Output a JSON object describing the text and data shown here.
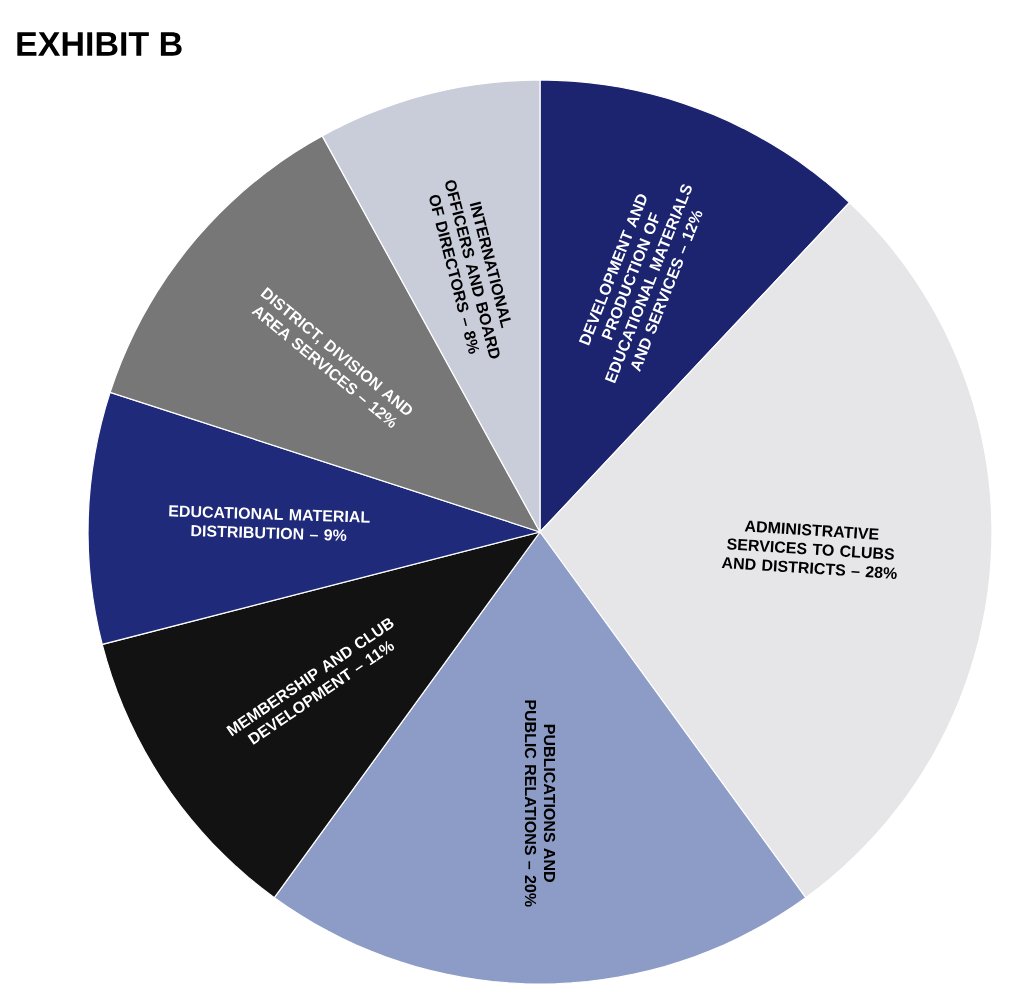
{
  "chart_data": {
    "type": "pie",
    "title": "EXHIBIT B",
    "categories": [
      "DEVELOPMENT AND PRODUCTION OF EDUCATIONAL MATERIALS AND SERVICES – 12%",
      "ADMINISTRATIVE SERVICES TO CLUBS AND DISTRICTS – 28%",
      "PUBLICATIONS AND PUBLIC RELATIONS – 20%",
      "MEMBERSHIP AND CLUB DEVELOPMENT – 11%",
      "EDUCATIONAL MATERIAL DISTRIBUTION – 9%",
      "DISTRICT, DIVISION AND AREA SERVICES – 12%",
      "INTERNATIONAL OFFICERS AND BOARD OF DIRECTORS – 8%"
    ],
    "values": [
      12,
      28,
      20,
      11,
      9,
      12,
      8
    ],
    "colors": [
      "#1c2470",
      "#e6e6e8",
      "#8c9cc6",
      "#121212",
      "#1f2a7a",
      "#777777",
      "#c9cdd9"
    ]
  }
}
